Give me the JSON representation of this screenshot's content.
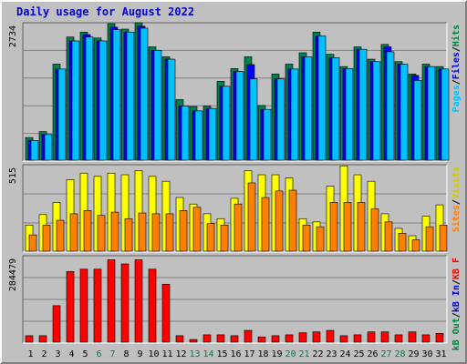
{
  "chart_data": {
    "type": "bar",
    "title": "Daily usage for August 2022",
    "categories": [
      "1",
      "2",
      "3",
      "4",
      "5",
      "6",
      "7",
      "8",
      "9",
      "10",
      "11",
      "12",
      "13",
      "14",
      "15",
      "16",
      "17",
      "18",
      "19",
      "20",
      "21",
      "22",
      "23",
      "24",
      "25",
      "26",
      "27",
      "28",
      "29",
      "30",
      "31"
    ],
    "weekend_days": [
      "6",
      "7",
      "13",
      "14",
      "20",
      "21",
      "27",
      "28"
    ],
    "panels": [
      {
        "id": "hits",
        "ymax_label": "2734",
        "ylim": [
          0,
          2734
        ],
        "legend": [
          {
            "text": "Hits",
            "color": "#008040"
          },
          {
            "text": "/",
            "color": "#000000"
          },
          {
            "text": "Files",
            "color": "#0000cc"
          },
          {
            "text": "/",
            "color": "#000000"
          },
          {
            "text": "Pages",
            "color": "#00c0ff"
          }
        ],
        "series": [
          {
            "name": "Hits",
            "color": "#008050",
            "values": [
              460,
              580,
              1950,
              2500,
              2600,
              2480,
              2770,
              2660,
              2790,
              2300,
              2100,
              1230,
              1090,
              1100,
              1600,
              1860,
              2100,
              1110,
              1750,
              1950,
              2180,
              2600,
              2150,
              1900,
              2300,
              2050,
              2350,
              2000,
              1750,
              1950,
              1900
            ]
          },
          {
            "name": "Files",
            "color": "#0000ff",
            "values": [
              400,
              520,
              1850,
              2420,
              2550,
              2420,
              2700,
              2600,
              2720,
              2230,
              2050,
              1100,
              1000,
              1050,
              1500,
              1800,
              1940,
              1030,
              1650,
              1850,
              2100,
              2520,
              2080,
              1860,
              2250,
              2000,
              2300,
              1950,
              1720,
              1900,
              1850
            ]
          },
          {
            "name": "Pages",
            "color": "#00c0ff",
            "values": [
              400,
              520,
              1850,
              2420,
              2500,
              2420,
              2650,
              2600,
              2680,
              2230,
              2050,
              1100,
              1000,
              1050,
              1500,
              1800,
              1650,
              1030,
              1650,
              1850,
              2100,
              2520,
              2080,
              1860,
              2250,
              2000,
              2200,
              1950,
              1620,
              1900,
              1850
            ]
          }
        ]
      },
      {
        "id": "visits",
        "ymax_label": "515",
        "ylim": [
          0,
          515
        ],
        "legend": [
          {
            "text": "Visits",
            "color": "#cccc00"
          },
          {
            "text": "/",
            "color": "#000000"
          },
          {
            "text": "Sites",
            "color": "#ff8000"
          }
        ],
        "series": [
          {
            "name": "Visits",
            "color": "#ffff00",
            "values": [
              160,
              225,
              300,
              440,
              480,
              460,
              480,
              470,
              495,
              460,
              430,
              330,
              290,
              230,
              200,
              325,
              495,
              470,
              470,
              450,
              200,
              180,
              400,
              525,
              470,
              430,
              230,
              140,
              95,
              215,
              285
            ]
          },
          {
            "name": "Sites",
            "color": "#ff8000",
            "values": [
              100,
              160,
              190,
              230,
              250,
              220,
              240,
              200,
              235,
              230,
              230,
              250,
              270,
              170,
              160,
              290,
              420,
              330,
              370,
              375,
              160,
              150,
              300,
              300,
              300,
              260,
              180,
              110,
              70,
              150,
              160
            ]
          }
        ]
      },
      {
        "id": "kbytes",
        "ymax_label": "284479",
        "ylim": [
          0,
          284479
        ],
        "legend": [
          {
            "text": "KB F",
            "color": "#ff0000"
          },
          {
            "text": "/",
            "color": "#000000"
          },
          {
            "text": "kB In",
            "color": "#0000cc"
          },
          {
            "text": "/",
            "color": "#000000"
          },
          {
            "text": "kB Out",
            "color": "#008040"
          }
        ],
        "series": [
          {
            "name": "KB F",
            "color": "#ff0000",
            "values": [
              22000,
              22000,
              124000,
              240000,
              248000,
              248000,
              280000,
              266000,
              280000,
              248000,
              197000,
              22000,
              9000,
              25000,
              25000,
              22000,
              40000,
              18000,
              22000,
              25000,
              32000,
              35000,
              40000,
              22000,
              25000,
              35000,
              35000,
              25000,
              35000,
              25000,
              30000
            ]
          }
        ]
      }
    ]
  }
}
